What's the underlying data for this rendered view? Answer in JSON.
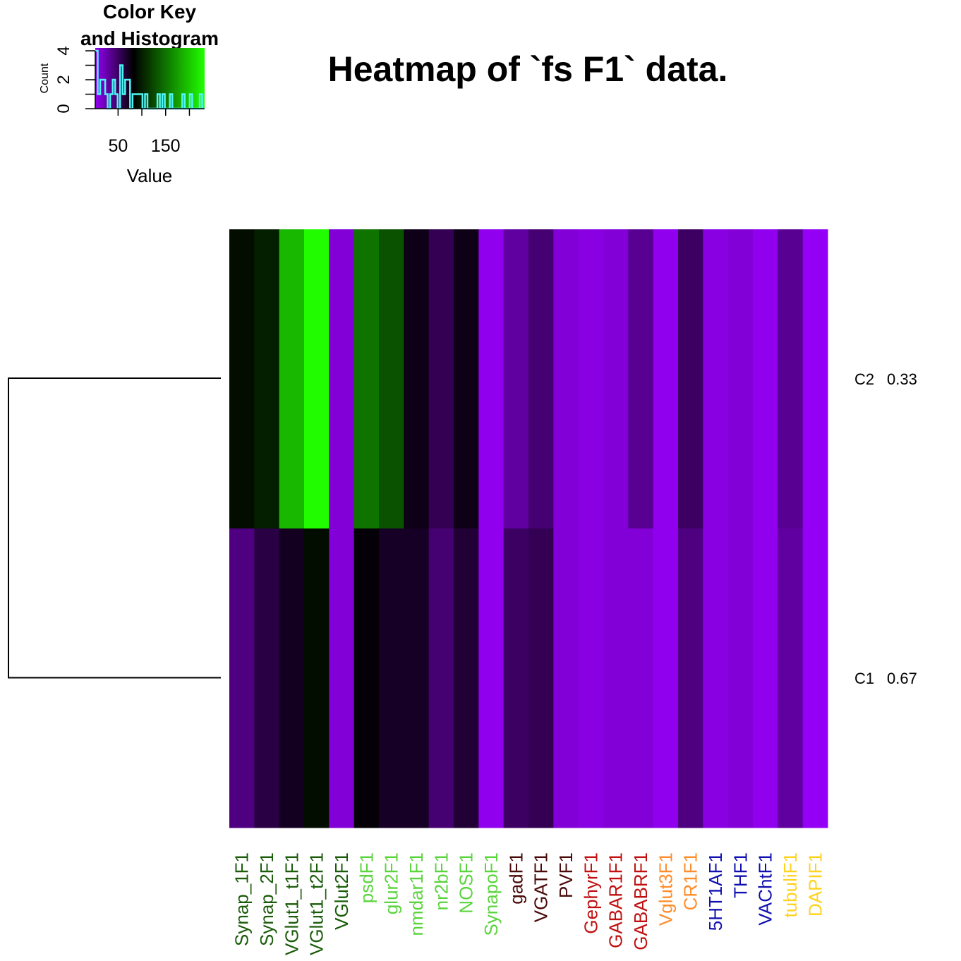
{
  "chart_data": {
    "type": "heatmap",
    "title": "Heatmap of `fs F1` data.",
    "rows": [
      {
        "label": "C2",
        "fraction": "0.33"
      },
      {
        "label": "C1",
        "fraction": "0.67"
      }
    ],
    "columns": [
      {
        "label": "Synap_1F1",
        "color": "#1a5c0a"
      },
      {
        "label": "Synap_2F1",
        "color": "#1a5c0a"
      },
      {
        "label": "VGlut1_t1F1",
        "color": "#1a5c0a"
      },
      {
        "label": "VGlut1_t2F1",
        "color": "#1a5c0a"
      },
      {
        "label": "VGlut2F1",
        "color": "#1a5c0a"
      },
      {
        "label": "psdF1",
        "color": "#5ad43c"
      },
      {
        "label": "glur2F1",
        "color": "#5ad43c"
      },
      {
        "label": "nmdar1F1",
        "color": "#5ad43c"
      },
      {
        "label": "nr2bF1",
        "color": "#5ad43c"
      },
      {
        "label": "NOSF1",
        "color": "#5ad43c"
      },
      {
        "label": "SynapoF1",
        "color": "#5ad43c"
      },
      {
        "label": "gadF1",
        "color": "#4a0a0a"
      },
      {
        "label": "VGATF1",
        "color": "#4a0a0a"
      },
      {
        "label": "PVF1",
        "color": "#4a0a0a"
      },
      {
        "label": "GephyrF1",
        "color": "#c01010"
      },
      {
        "label": "GABAR1F1",
        "color": "#c01010"
      },
      {
        "label": "GABABRF1",
        "color": "#c01010"
      },
      {
        "label": "Vglut3F1",
        "color": "#ff8c2a"
      },
      {
        "label": "CR1F1",
        "color": "#ff8c2a"
      },
      {
        "label": "5HT1AF1",
        "color": "#1010b0"
      },
      {
        "label": "THF1",
        "color": "#1010b0"
      },
      {
        "label": "VAChtF1",
        "color": "#1010b0"
      },
      {
        "label": "tubuliF1",
        "color": "#ffd21e"
      },
      {
        "label": "DAPIF1",
        "color": "#ffd21e"
      }
    ],
    "values": [
      [
        90,
        100,
        190,
        230,
        12,
        150,
        130,
        75,
        55,
        75,
        4,
        30,
        45,
        12,
        8,
        12,
        35,
        4,
        50,
        8,
        12,
        4,
        35,
        2
      ],
      [
        40,
        60,
        72,
        90,
        12,
        80,
        70,
        70,
        45,
        65,
        4,
        50,
        55,
        12,
        8,
        12,
        12,
        4,
        40,
        8,
        12,
        4,
        30,
        2
      ]
    ],
    "color_key": {
      "title": "Color Key",
      "subtitle": "and Histogram",
      "xlabel": "Value",
      "ylabel": "Count",
      "xticks": [
        50,
        150
      ],
      "yticks": [
        0,
        2,
        4
      ],
      "range": [
        2,
        232
      ],
      "colors": [
        "#9400f5",
        "#000000",
        "#21ff00"
      ],
      "histogram": [
        4,
        1,
        2,
        2,
        1,
        0,
        1,
        2,
        1,
        0,
        3,
        1,
        2,
        2,
        0,
        1,
        1,
        1,
        1,
        0,
        1,
        0,
        0,
        0,
        0,
        1,
        0,
        1,
        0,
        0,
        1,
        0,
        0,
        0,
        0,
        1,
        0,
        0,
        1,
        0,
        0,
        0,
        1,
        0
      ]
    },
    "dendrogram": {
      "side": "left",
      "leaves": [
        "C2",
        "C1"
      ]
    }
  }
}
